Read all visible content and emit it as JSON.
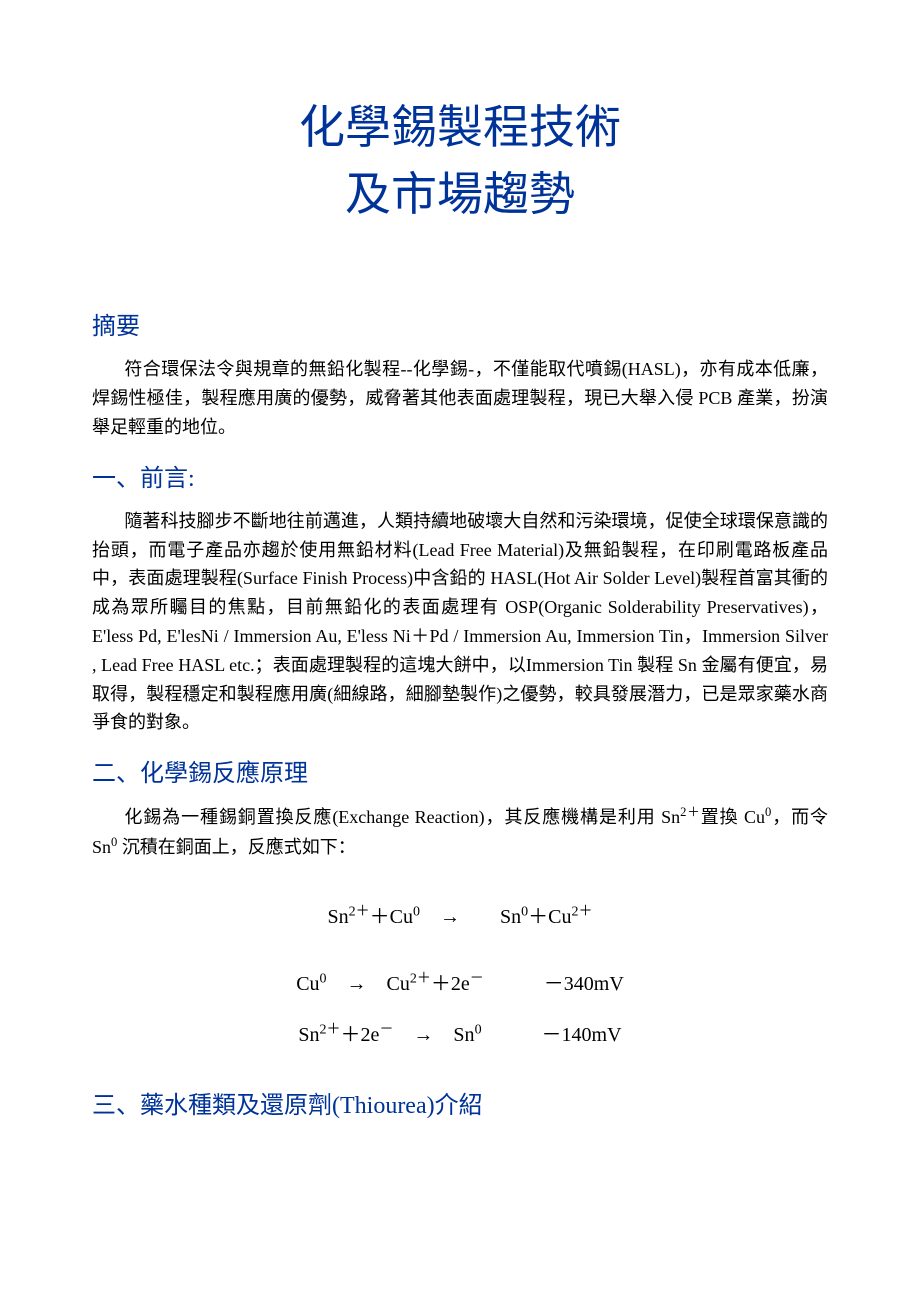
{
  "colors": {
    "heading_color": "#003399",
    "text_color": "#000000",
    "background": "#ffffff"
  },
  "typography": {
    "title_fontsize": 46,
    "heading_fontsize": 24,
    "body_fontsize": 18,
    "equation_fontsize": 20,
    "font_family": "Times New Roman, PMingLiU, serif"
  },
  "title": {
    "line1": "化學錫製程技術",
    "line2": "及市場趨勢"
  },
  "sections": {
    "abstract": {
      "heading": "摘要",
      "body": "符合環保法令與規章的無鉛化製程--化學錫-，不僅能取代噴錫(HASL)，亦有成本低廉，焊錫性極佳，製程應用廣的優勢，威脅著其他表面處理製程，現已大舉入侵 PCB 產業，扮演舉足輕重的地位。"
    },
    "s1": {
      "heading": "一、前言:",
      "body": "隨著科技腳步不斷地往前邁進，人類持續地破壞大自然和污染環境，促使全球環保意識的抬頭，而電子產品亦趨於使用無鉛材料(Lead Free Material)及無鉛製程，在印刷電路板產品中，表面處理製程(Surface Finish Process)中含鉛的 HASL(Hot Air Solder Level)製程首富其衝的成為眾所矚目的焦點，目前無鉛化的表面處理有 OSP(Organic Solderability Preservatives)，E'less Pd, E'lesNi / Immersion Au, E'less Ni＋Pd / Immersion Au, Immersion Tin，Immersion Silver , Lead Free HASL etc.；表面處理製程的這塊大餅中，以Immersion Tin 製程 Sn 金屬有便宜，易取得，製程穩定和製程應用廣(細線路，細腳墊製作)之優勢，較具發展潛力，已是眾家藥水商爭食的對象。"
    },
    "s2": {
      "heading": "二、化學錫反應原理",
      "body_html": "化錫為一種錫銅置換反應(Exchange Reaction)，其反應機構是利用 Sn<sup>2＋</sup>置換 Cu<sup>0</sup>，而令 Sn<sup>0</sup> 沉積在銅面上，反應式如下：",
      "equations": {
        "eq1_html": "Sn<sup>2＋</sup>＋Cu<sup>0</sup>　→　　Sn<sup>0</sup>＋Cu<sup>2＋</sup>",
        "eq2_html": "Cu<sup>0</sup>　→　Cu<sup>2＋</sup>＋2e<sup>－</sup>　　　－340mV",
        "eq3_html": "Sn<sup>2＋</sup>＋2e<sup>－</sup>　→　Sn<sup>0</sup>　　　－140mV"
      }
    },
    "s3": {
      "heading": "三、藥水種類及還原劑(Thiourea)介紹"
    }
  }
}
